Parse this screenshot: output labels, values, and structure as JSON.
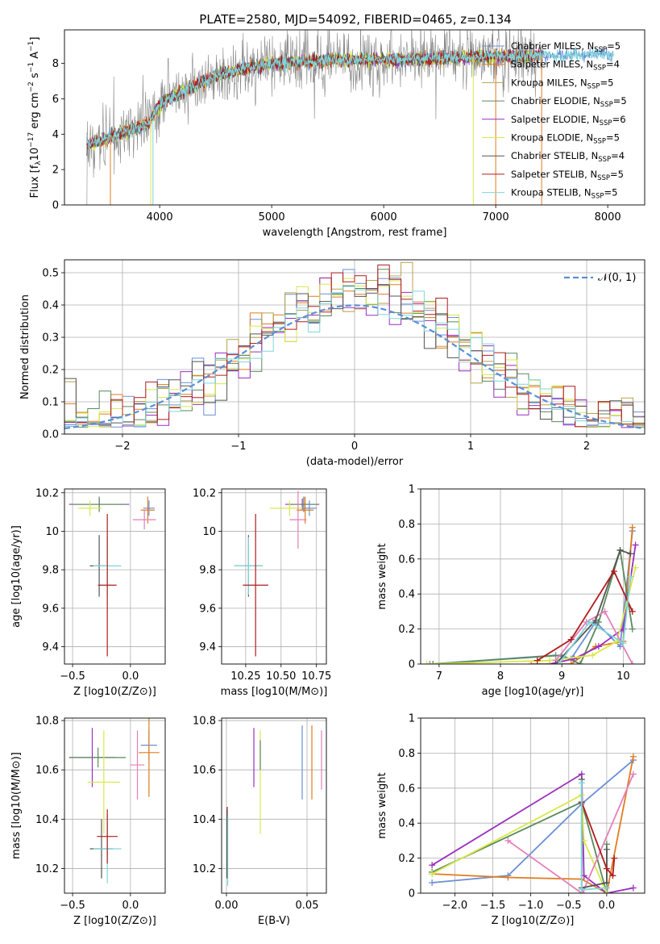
{
  "chart_data": [
    {
      "id": "spectrum",
      "type": "line",
      "title": "PLATE=2580, MJD=54092, FIBERID=0465, z=0.134",
      "xlabel": "wavelength [Angstrom, rest frame]",
      "ylabel": "Flux [f_λ 10^-17 erg cm^-2 s^-1 A^-1]",
      "ylabel_main": "Flux [f",
      "ylabel_sub": "λ",
      "ylabel_rest": "10",
      "ylabel_exp1": "−17",
      "ylabel_mid": " erg cm",
      "ylabel_exp2": "−2",
      "ylabel_mid2": " s",
      "ylabel_exp3": "−1",
      "ylabel_end": " A",
      "ylabel_exp4": "−1",
      "ylabel_close": "]",
      "xlim": [
        3150,
        8330
      ],
      "ylim": [
        0,
        9.9
      ],
      "xticks": [
        4000,
        5000,
        6000,
        7000,
        8000
      ],
      "yticks": [
        0,
        2,
        4,
        6,
        8
      ],
      "legend_position": "upper-right",
      "legend": [
        {
          "pre": "Chabrier MILES, N",
          "sub": "SSP",
          "post": "=5",
          "color": "#6b8fd6"
        },
        {
          "pre": "Salpeter MILES, N",
          "sub": "SSP",
          "post": "=4",
          "color": "#e07b1f"
        },
        {
          "pre": "Kroupa MILES, N",
          "sub": "SSP",
          "post": "=5",
          "color": "#b8a04a"
        },
        {
          "pre": "Chabrier ELODIE, N",
          "sub": "SSP",
          "post": "=5",
          "color": "#5a8a5a"
        },
        {
          "pre": "Salpeter ELODIE, N",
          "sub": "SSP",
          "post": "=6",
          "color": "#9a2fbf"
        },
        {
          "pre": "Kroupa ELODIE, N",
          "sub": "SSP",
          "post": "=5",
          "color": "#d8e84a"
        },
        {
          "pre": "Chabrier STELIB, N",
          "sub": "SSP",
          "post": "=4",
          "color": "#555555"
        },
        {
          "pre": "Salpeter STELIB, N",
          "sub": "SSP",
          "post": "=5",
          "color": "#b01c1c"
        },
        {
          "pre": "Kroupa STELIB, N",
          "sub": "SSP",
          "post": "=5",
          "color": "#7fd6da"
        }
      ],
      "data_color": "#888888",
      "continuum_x": [
        3350,
        3500,
        3700,
        3900,
        4000,
        4200,
        4500,
        4800,
        5000,
        5300,
        5600,
        6000,
        6300,
        6600,
        7000,
        7400,
        7800,
        8050
      ],
      "continuum_y": [
        3.4,
        3.7,
        4.2,
        4.6,
        5.7,
        6.4,
        7.3,
        7.8,
        8.0,
        8.1,
        8.2,
        8.2,
        8.25,
        8.3,
        8.4,
        8.45,
        8.5,
        8.5
      ]
    },
    {
      "id": "residuals",
      "type": "step",
      "xlabel": "(data-model)/error",
      "ylabel": "Normed distribution",
      "xlim": [
        -2.5,
        2.5
      ],
      "ylim": [
        0,
        0.54
      ],
      "xticks": [
        -2,
        -1,
        0,
        1,
        2
      ],
      "xtick_labels": [
        "−2",
        "−1",
        "0",
        "1",
        "2"
      ],
      "yticks": [
        0.0,
        0.1,
        0.2,
        0.3,
        0.4,
        0.5
      ],
      "ytick_labels": [
        "0.0",
        "0.1",
        "0.2",
        "0.3",
        "0.4",
        "0.5"
      ],
      "grid": true,
      "legend_position": "upper-right",
      "gaussian_label": "𝒩(0, 1)",
      "gaussian_color": "#5b8ed6"
    },
    {
      "id": "age_vs_Z",
      "type": "errorbar",
      "xlabel": "Z [log10(Z/Z⊙)]",
      "ylabel": "age [log10(age/yr)]",
      "xlim": [
        -0.57,
        0.3
      ],
      "ylim": [
        9.31,
        10.22
      ],
      "xticks": [
        -0.5,
        0.0
      ],
      "xtick_labels": [
        "−0.5",
        "0.0"
      ],
      "yticks": [
        9.4,
        9.6,
        9.8,
        10.0,
        10.2
      ],
      "grid": true,
      "points": [
        {
          "x": -0.27,
          "y": 10.14,
          "xerr": 0.26,
          "yerr": 0.03,
          "color": "#9a2fbf"
        },
        {
          "x": -0.27,
          "y": 10.14,
          "xerr": 0.24,
          "yerr": 0.04,
          "color": "#5a8a5a"
        },
        {
          "x": -0.35,
          "y": 10.12,
          "xerr": 0.1,
          "yerr": 0.04,
          "color": "#d8e84a"
        },
        {
          "x": 0.16,
          "y": 10.12,
          "xerr": 0.05,
          "yerr": 0.04,
          "color": "#6b8fd6"
        },
        {
          "x": 0.15,
          "y": 10.11,
          "xerr": 0.06,
          "yerr": 0.07,
          "color": "#e07b1f"
        },
        {
          "x": 0.12,
          "y": 10.06,
          "xerr": 0.1,
          "yerr": 0.05,
          "color": "#e37fb8"
        },
        {
          "x": -0.27,
          "y": 9.82,
          "xerr": 0.08,
          "yerr": 0.16,
          "color": "#555555"
        },
        {
          "x": -0.2,
          "y": 9.82,
          "xerr": 0.12,
          "yerr": 0.15,
          "color": "#7fd6da"
        },
        {
          "x": -0.2,
          "y": 9.72,
          "xerr": 0.08,
          "yerr": 0.37,
          "color": "#b01c1c"
        }
      ]
    },
    {
      "id": "age_vs_mass",
      "type": "errorbar",
      "xlabel": "mass [log10(M/M⊙)]",
      "xlim": [
        10.08,
        10.82
      ],
      "ylim": [
        9.31,
        10.22
      ],
      "xticks": [
        10.25,
        10.5,
        10.75
      ],
      "xtick_labels": [
        "10.25",
        "10.50",
        "10.75"
      ],
      "yticks": [
        9.4,
        9.6,
        9.8,
        10.0,
        10.2
      ],
      "grid": true,
      "points": [
        {
          "x": 10.65,
          "y": 10.14,
          "xerr": 0.12,
          "yerr": 0.03,
          "color": "#9a2fbf"
        },
        {
          "x": 10.66,
          "y": 10.14,
          "xerr": 0.1,
          "yerr": 0.04,
          "color": "#5a8a5a"
        },
        {
          "x": 10.56,
          "y": 10.12,
          "xerr": 0.14,
          "yerr": 0.04,
          "color": "#d8e84a"
        },
        {
          "x": 10.7,
          "y": 10.12,
          "xerr": 0.05,
          "yerr": 0.04,
          "color": "#6b8fd6"
        },
        {
          "x": 10.67,
          "y": 10.11,
          "xerr": 0.06,
          "yerr": 0.07,
          "color": "#e07b1f"
        },
        {
          "x": 10.62,
          "y": 10.06,
          "xerr": 0.06,
          "yerr": 0.15,
          "color": "#e37fb8"
        },
        {
          "x": 10.27,
          "y": 9.82,
          "xerr": 0.1,
          "yerr": 0.16,
          "color": "#555555"
        },
        {
          "x": 10.27,
          "y": 9.82,
          "xerr": 0.1,
          "yerr": 0.15,
          "color": "#7fd6da"
        },
        {
          "x": 10.32,
          "y": 9.72,
          "xerr": 0.09,
          "yerr": 0.37,
          "color": "#b01c1c"
        }
      ]
    },
    {
      "id": "mass_weight_vs_age",
      "type": "line",
      "xlabel": "age [log10(age/yr)]",
      "ylabel": "mass weight",
      "xlim": [
        6.7,
        10.35
      ],
      "ylim": [
        0,
        1.0
      ],
      "xticks": [
        7,
        8,
        9,
        10
      ],
      "yticks": [
        0.0,
        0.2,
        0.4,
        0.6,
        0.8,
        1.0
      ],
      "grid": true,
      "series": [
        {
          "color": "#6b8fd6",
          "x": [
            6.85,
            8.9,
            9.15,
            9.55,
            9.95,
            10.15
          ],
          "y": [
            0.0,
            0.05,
            0.03,
            0.24,
            0.1,
            0.76
          ]
        },
        {
          "color": "#e07b1f",
          "x": [
            8.5,
            9.15,
            9.55,
            10.0,
            10.15
          ],
          "y": [
            0.0,
            0.0,
            0.1,
            0.13,
            0.78
          ]
        },
        {
          "color": "#5a8a5a",
          "x": [
            6.9,
            9.0,
            9.3,
            9.6,
            9.95,
            10.15
          ],
          "y": [
            0.0,
            0.05,
            0.0,
            0.24,
            0.65,
            0.2
          ]
        },
        {
          "color": "#9a2fbf",
          "x": [
            8.8,
            9.2,
            9.6,
            10.0,
            10.2
          ],
          "y": [
            0.0,
            0.03,
            0.1,
            0.2,
            0.68
          ]
        },
        {
          "color": "#d8e84a",
          "x": [
            6.8,
            8.8,
            9.5,
            9.9,
            10.2
          ],
          "y": [
            0.0,
            0.02,
            0.05,
            0.13,
            0.55
          ]
        },
        {
          "color": "#e37fb8",
          "x": [
            8.9,
            9.4,
            9.7,
            10.15
          ],
          "y": [
            0.02,
            0.24,
            0.3,
            0.0
          ]
        },
        {
          "color": "#555555",
          "x": [
            8.9,
            9.55,
            9.95,
            10.12
          ],
          "y": [
            0.0,
            0.25,
            0.65,
            0.63
          ]
        },
        {
          "color": "#b01c1c",
          "x": [
            8.6,
            9.15,
            9.85,
            10.15
          ],
          "y": [
            0.02,
            0.14,
            0.53,
            0.3
          ]
        },
        {
          "color": "#7fd6da",
          "x": [
            8.95,
            9.45,
            10.0,
            10.12
          ],
          "y": [
            0.0,
            0.24,
            0.12,
            0.5
          ]
        }
      ]
    },
    {
      "id": "mass_vs_Z",
      "type": "errorbar",
      "xlabel": "Z [log10(Z/Z⊙)]",
      "ylabel": "mass [log10(M/M⊙)]",
      "xlim": [
        -0.57,
        0.3
      ],
      "ylim": [
        10.1,
        10.81
      ],
      "xticks": [
        -0.5,
        0.0
      ],
      "xtick_labels": [
        "−0.5",
        "0.0"
      ],
      "yticks": [
        10.2,
        10.4,
        10.6,
        10.8
      ],
      "grid": true,
      "points": [
        {
          "x": -0.33,
          "y": 10.65,
          "xerr": 0.2,
          "yerr": 0.12,
          "color": "#9a2fbf"
        },
        {
          "x": -0.28,
          "y": 10.65,
          "xerr": 0.24,
          "yerr": 0.04,
          "color": "#5a8a5a"
        },
        {
          "x": -0.23,
          "y": 10.55,
          "xerr": 0.14,
          "yerr": 0.21,
          "color": "#d8e84a"
        },
        {
          "x": 0.16,
          "y": 10.7,
          "xerr": 0.07,
          "yerr": 0.06,
          "color": "#6b8fd6"
        },
        {
          "x": 0.16,
          "y": 10.67,
          "xerr": 0.09,
          "yerr": 0.18,
          "color": "#e07b1f"
        },
        {
          "x": 0.06,
          "y": 10.62,
          "xerr": 0.06,
          "yerr": 0.14,
          "color": "#e37fb8"
        },
        {
          "x": -0.25,
          "y": 10.28,
          "xerr": 0.1,
          "yerr": 0.12,
          "color": "#555555"
        },
        {
          "x": -0.2,
          "y": 10.28,
          "xerr": 0.12,
          "yerr": 0.14,
          "color": "#7fd6da"
        },
        {
          "x": -0.2,
          "y": 10.33,
          "xerr": 0.09,
          "yerr": 0.11,
          "color": "#b01c1c"
        }
      ]
    },
    {
      "id": "mass_vs_EBV",
      "type": "errorbar",
      "xlabel": "E(B-V)",
      "xlim": [
        -0.003,
        0.062
      ],
      "ylim": [
        10.1,
        10.81
      ],
      "xticks": [
        0.0,
        0.05
      ],
      "xtick_labels": [
        "0.00",
        "0.05"
      ],
      "yticks": [
        10.2,
        10.4,
        10.6,
        10.8
      ],
      "grid": true,
      "points": [
        {
          "x": 0.017,
          "y": 10.65,
          "xerr": 0,
          "yerr": 0.12,
          "color": "#9a2fbf"
        },
        {
          "x": 0.021,
          "y": 10.55,
          "xerr": 0,
          "yerr": 0.21,
          "color": "#d8e84a"
        },
        {
          "x": 0.021,
          "y": 10.66,
          "xerr": 0,
          "yerr": 0.06,
          "color": "#5a8a5a"
        },
        {
          "x": 0.047,
          "y": 10.63,
          "xerr": 0,
          "yerr": 0.15,
          "color": "#6b8fd6"
        },
        {
          "x": 0.053,
          "y": 10.63,
          "xerr": 0,
          "yerr": 0.15,
          "color": "#e07b1f"
        },
        {
          "x": 0.059,
          "y": 10.64,
          "xerr": 0,
          "yerr": 0.12,
          "color": "#e37fb8"
        },
        {
          "x": 0.0005,
          "y": 10.35,
          "xerr": 0,
          "yerr": 0.1,
          "color": "#b01c1c"
        },
        {
          "x": 0.0008,
          "y": 10.27,
          "xerr": 0,
          "yerr": 0.14,
          "color": "#7fd6da"
        },
        {
          "x": 0.0003,
          "y": 10.3,
          "xerr": 0,
          "yerr": 0.14,
          "color": "#555555"
        }
      ]
    },
    {
      "id": "mass_weight_vs_Z",
      "type": "line",
      "xlabel": "Z [log10(Z/Z⊙)]",
      "ylabel": "mass weight",
      "xlim": [
        -2.45,
        0.5
      ],
      "ylim": [
        0,
        1.0
      ],
      "xticks": [
        -2.0,
        -1.5,
        -1.0,
        -0.5,
        0.0
      ],
      "xtick_labels": [
        "−2.0",
        "−1.5",
        "−1.0",
        "−0.5",
        "0.0"
      ],
      "yticks": [
        0.0,
        0.2,
        0.4,
        0.6,
        0.8,
        1.0
      ],
      "grid": true,
      "series": [
        {
          "color": "#6b8fd6",
          "x": [
            -2.3,
            -1.3,
            -0.33,
            0.35
          ],
          "y": [
            0.06,
            0.1,
            0.51,
            0.76
          ]
        },
        {
          "color": "#e07b1f",
          "x": [
            -2.3,
            -1.3,
            -0.33,
            0.0,
            0.35
          ],
          "y": [
            0.11,
            0.09,
            0.08,
            0.0,
            0.78
          ]
        },
        {
          "color": "#5a8a5a",
          "x": [
            -2.3,
            -0.33,
            0.0,
            0.0
          ],
          "y": [
            0.12,
            0.52,
            0.0,
            0.28
          ]
        },
        {
          "color": "#9a2fbf",
          "x": [
            -2.3,
            -0.33,
            -0.3,
            0.0,
            0.35
          ],
          "y": [
            0.16,
            0.68,
            0.1,
            0.0,
            0.03
          ]
        },
        {
          "color": "#d8e84a",
          "x": [
            -2.3,
            -0.33,
            -0.3,
            0.0
          ],
          "y": [
            0.11,
            0.56,
            0.3,
            0.0
          ]
        },
        {
          "color": "#e37fb8",
          "x": [
            -1.3,
            -0.33,
            -0.3,
            0.35
          ],
          "y": [
            0.3,
            0.0,
            0.02,
            0.68
          ]
        },
        {
          "color": "#555555",
          "x": [
            -0.33,
            -0.33,
            0.0,
            0.0
          ],
          "y": [
            0.65,
            0.03,
            0.06,
            0.25
          ]
        },
        {
          "color": "#b01c1c",
          "x": [
            -0.33,
            0.0,
            0.08,
            0.1
          ],
          "y": [
            0.52,
            0.14,
            0.1,
            0.2
          ]
        },
        {
          "color": "#7fd6da",
          "x": [
            -0.33,
            -0.33,
            0.0
          ],
          "y": [
            0.63,
            0.02,
            0.03
          ]
        }
      ]
    }
  ]
}
